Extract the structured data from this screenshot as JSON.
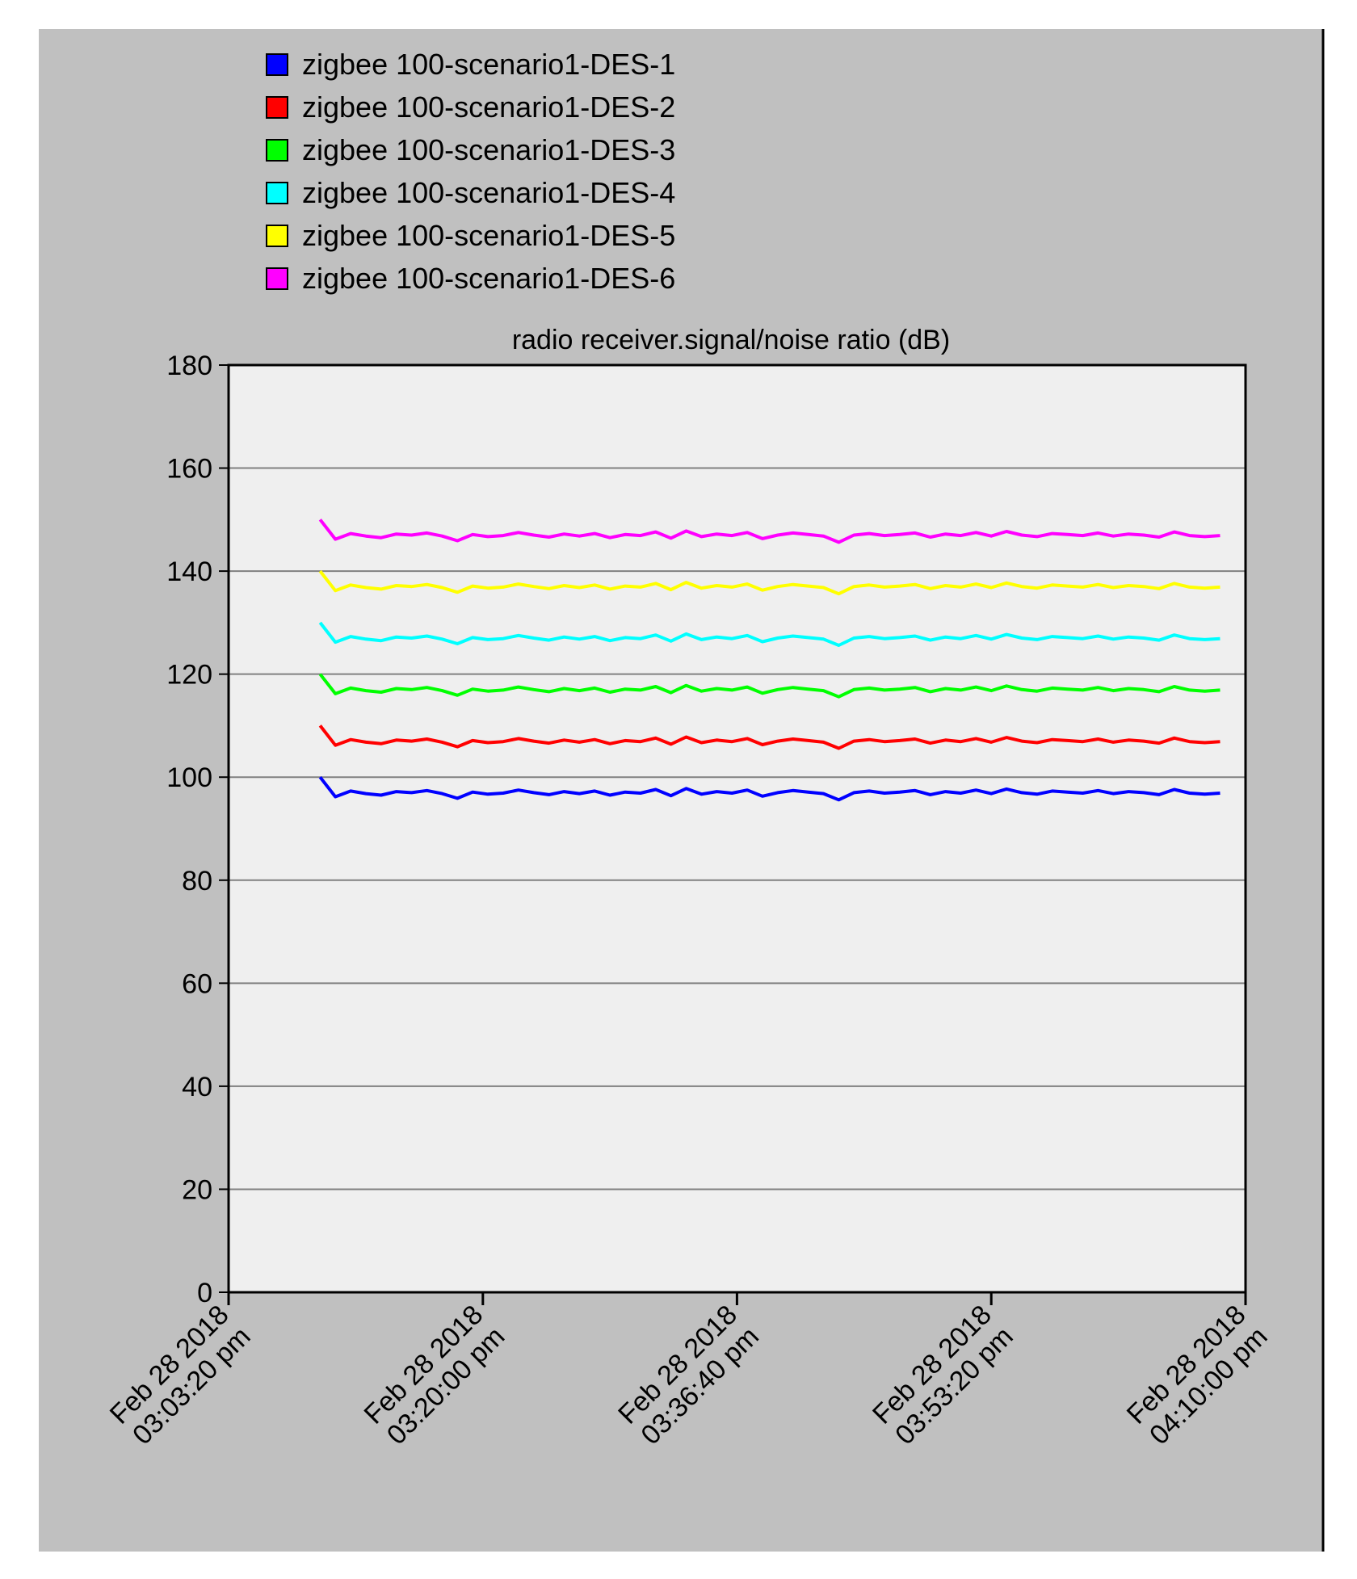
{
  "chart_data": {
    "type": "line",
    "title": "radio receiver.signal/noise ratio (dB)",
    "xlabel": "",
    "ylabel": "",
    "ylim": [
      0,
      180
    ],
    "yticks": [
      0,
      20,
      40,
      60,
      80,
      100,
      120,
      140,
      160,
      180
    ],
    "xlim_minutes": [
      0,
      66.67
    ],
    "xtick_minutes": [
      0,
      16.67,
      33.33,
      50,
      66.67
    ],
    "xtick_labels": [
      [
        "Feb 28 2018",
        "03:03:20 pm"
      ],
      [
        "Feb 28 2018",
        "03:20:00 pm"
      ],
      [
        "Feb 28 2018",
        "03:36:40 pm"
      ],
      [
        "Feb 28 2018",
        "03:53:20 pm"
      ],
      [
        "Feb 28 2018",
        "04:10:00 pm"
      ]
    ],
    "grid": true,
    "legend_position": "top-left",
    "x": [
      6.0,
      7.0,
      8.0,
      9.0,
      10.0,
      11.0,
      12.0,
      13.0,
      14.0,
      15.0,
      16.0,
      17.0,
      18.0,
      19.0,
      20.0,
      21.0,
      22.0,
      23.0,
      24.0,
      25.0,
      26.0,
      27.0,
      28.0,
      29.0,
      30.0,
      31.0,
      32.0,
      33.0,
      34.0,
      35.0,
      36.0,
      37.0,
      38.0,
      39.0,
      40.0,
      41.0,
      42.0,
      43.0,
      44.0,
      45.0,
      46.0,
      47.0,
      48.0,
      49.0,
      50.0,
      51.0,
      52.0,
      53.0,
      54.0,
      55.0,
      56.0,
      57.0,
      58.0,
      59.0,
      60.0,
      61.0,
      62.0,
      63.0,
      64.0,
      65.0
    ],
    "series": [
      {
        "name": "zigbee 100-scenario1-DES-1",
        "color": "#0000ff",
        "values": [
          100,
          96.2,
          97.3,
          96.8,
          96.5,
          97.2,
          97.0,
          97.4,
          96.8,
          95.9,
          97.1,
          96.7,
          96.9,
          97.5,
          97.0,
          96.6,
          97.2,
          96.8,
          97.3,
          96.5,
          97.1,
          96.9,
          97.6,
          96.4,
          97.8,
          96.7,
          97.2,
          96.9,
          97.5,
          96.3,
          97.0,
          97.4,
          97.1,
          96.8,
          95.6,
          97.0,
          97.3,
          96.9,
          97.1,
          97.4,
          96.6,
          97.2,
          96.9,
          97.5,
          96.8,
          97.7,
          97.0,
          96.7,
          97.3,
          97.1,
          96.9,
          97.4,
          96.8,
          97.2,
          97.0,
          96.6,
          97.6,
          96.9,
          96.7,
          96.9
        ]
      },
      {
        "name": "zigbee 100-scenario1-DES-2",
        "color": "#ff0000",
        "values": [
          110,
          106.2,
          107.3,
          106.8,
          106.5,
          107.2,
          107.0,
          107.4,
          106.8,
          105.9,
          107.1,
          106.7,
          106.9,
          107.5,
          107.0,
          106.6,
          107.2,
          106.8,
          107.3,
          106.5,
          107.1,
          106.9,
          107.6,
          106.4,
          107.8,
          106.7,
          107.2,
          106.9,
          107.5,
          106.3,
          107.0,
          107.4,
          107.1,
          106.8,
          105.6,
          107.0,
          107.3,
          106.9,
          107.1,
          107.4,
          106.6,
          107.2,
          106.9,
          107.5,
          106.8,
          107.7,
          107.0,
          106.7,
          107.3,
          107.1,
          106.9,
          107.4,
          106.8,
          107.2,
          107.0,
          106.6,
          107.6,
          106.9,
          106.7,
          106.9
        ]
      },
      {
        "name": "zigbee 100-scenario1-DES-3",
        "color": "#00ff00",
        "values": [
          120,
          116.2,
          117.3,
          116.8,
          116.5,
          117.2,
          117.0,
          117.4,
          116.8,
          115.9,
          117.1,
          116.7,
          116.9,
          117.5,
          117.0,
          116.6,
          117.2,
          116.8,
          117.3,
          116.5,
          117.1,
          116.9,
          117.6,
          116.4,
          117.8,
          116.7,
          117.2,
          116.9,
          117.5,
          116.3,
          117.0,
          117.4,
          117.1,
          116.8,
          115.6,
          117.0,
          117.3,
          116.9,
          117.1,
          117.4,
          116.6,
          117.2,
          116.9,
          117.5,
          116.8,
          117.7,
          117.0,
          116.7,
          117.3,
          117.1,
          116.9,
          117.4,
          116.8,
          117.2,
          117.0,
          116.6,
          117.6,
          116.9,
          116.7,
          116.9
        ]
      },
      {
        "name": "zigbee 100-scenario1-DES-4",
        "color": "#00ffff",
        "values": [
          130,
          126.2,
          127.3,
          126.8,
          126.5,
          127.2,
          127.0,
          127.4,
          126.8,
          125.9,
          127.1,
          126.7,
          126.9,
          127.5,
          127.0,
          126.6,
          127.2,
          126.8,
          127.3,
          126.5,
          127.1,
          126.9,
          127.6,
          126.4,
          127.8,
          126.7,
          127.2,
          126.9,
          127.5,
          126.3,
          127.0,
          127.4,
          127.1,
          126.8,
          125.6,
          127.0,
          127.3,
          126.9,
          127.1,
          127.4,
          126.6,
          127.2,
          126.9,
          127.5,
          126.8,
          127.7,
          127.0,
          126.7,
          127.3,
          127.1,
          126.9,
          127.4,
          126.8,
          127.2,
          127.0,
          126.6,
          127.6,
          126.9,
          126.7,
          126.9
        ]
      },
      {
        "name": "zigbee 100-scenario1-DES-5",
        "color": "#ffff00",
        "values": [
          140,
          136.2,
          137.3,
          136.8,
          136.5,
          137.2,
          137.0,
          137.4,
          136.8,
          135.9,
          137.1,
          136.7,
          136.9,
          137.5,
          137.0,
          136.6,
          137.2,
          136.8,
          137.3,
          136.5,
          137.1,
          136.9,
          137.6,
          136.4,
          137.8,
          136.7,
          137.2,
          136.9,
          137.5,
          136.3,
          137.0,
          137.4,
          137.1,
          136.8,
          135.6,
          137.0,
          137.3,
          136.9,
          137.1,
          137.4,
          136.6,
          137.2,
          136.9,
          137.5,
          136.8,
          137.7,
          137.0,
          136.7,
          137.3,
          137.1,
          136.9,
          137.4,
          136.8,
          137.2,
          137.0,
          136.6,
          137.6,
          136.9,
          136.7,
          136.9
        ]
      },
      {
        "name": "zigbee 100-scenario1-DES-6",
        "color": "#ff00ff",
        "values": [
          150,
          146.2,
          147.3,
          146.8,
          146.5,
          147.2,
          147.0,
          147.4,
          146.8,
          145.9,
          147.1,
          146.7,
          146.9,
          147.5,
          147.0,
          146.6,
          147.2,
          146.8,
          147.3,
          146.5,
          147.1,
          146.9,
          147.6,
          146.4,
          147.8,
          146.7,
          147.2,
          146.9,
          147.5,
          146.3,
          147.0,
          147.4,
          147.1,
          146.8,
          145.6,
          147.0,
          147.3,
          146.9,
          147.1,
          147.4,
          146.6,
          147.2,
          146.9,
          147.5,
          146.8,
          147.7,
          147.0,
          146.7,
          147.3,
          147.1,
          146.9,
          147.4,
          146.8,
          147.2,
          147.0,
          146.6,
          147.6,
          146.9,
          146.7,
          146.9
        ]
      }
    ]
  }
}
